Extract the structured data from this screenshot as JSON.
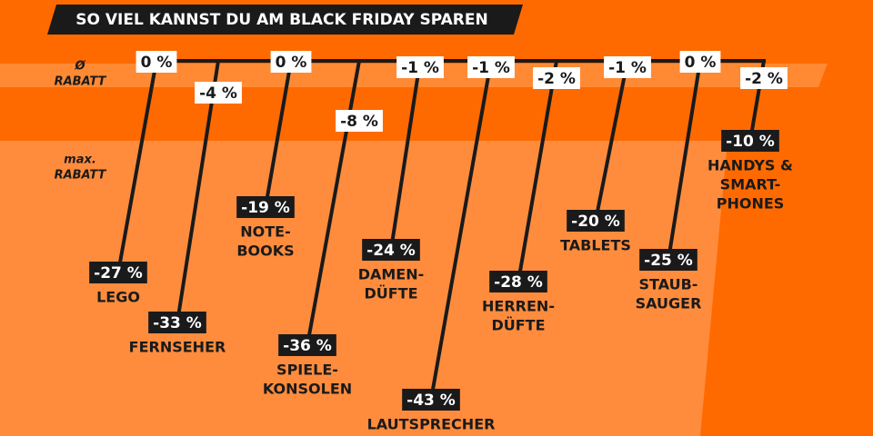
{
  "title": "SO VIEL KANNST DU AM BLACK FRIDAY SPAREN",
  "labels": {
    "avg": [
      "Ø",
      "RABATT"
    ],
    "max": [
      "max.",
      "RABATT"
    ]
  },
  "items": [
    {
      "avg": "0 %",
      "max": "-27 %",
      "name": [
        "LEGO"
      ]
    },
    {
      "avg": "-4 %",
      "max": "-33 %",
      "name": [
        "FERNSEHER"
      ]
    },
    {
      "avg": "0 %",
      "max": "-19 %",
      "name": [
        "NOTE-",
        "BOOKS"
      ]
    },
    {
      "avg": "-8 %",
      "max": "-36 %",
      "name": [
        "SPIELE-",
        "KONSOLEN"
      ]
    },
    {
      "avg": "-1 %",
      "max": "-24 %",
      "name": [
        "DAMEN-",
        "DÜFTE"
      ]
    },
    {
      "avg": "-1 %",
      "max": "-43 %",
      "name": [
        "LAUTSPRECHER"
      ]
    },
    {
      "avg": "-2 %",
      "max": "-28 %",
      "name": [
        "HERREN-",
        "DÜFTE"
      ]
    },
    {
      "avg": "-1 %",
      "max": "-20 %",
      "name": [
        "TABLETS"
      ]
    },
    {
      "avg": "0 %",
      "max": "-25 %",
      "name": [
        "STAUB-",
        "SAUGER"
      ]
    },
    {
      "avg": "-2 %",
      "max": "-10 %",
      "name": [
        "HANDYS &",
        "SMART-",
        "PHONES"
      ]
    }
  ]
}
